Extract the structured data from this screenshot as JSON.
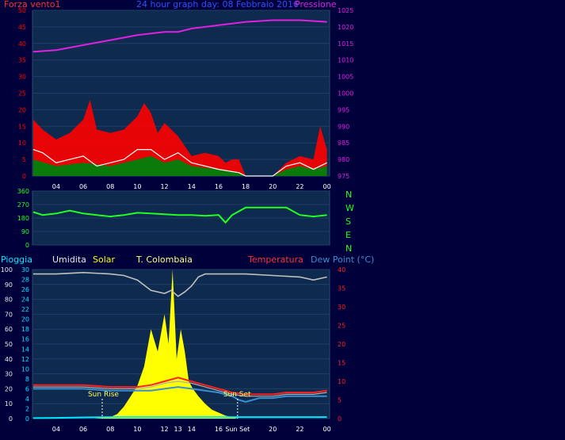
{
  "header": {
    "wind_label": "Forza vento1",
    "title": "24 hour graph day:  08 Febbraio 2016",
    "pressure_label": "Pressione"
  },
  "compass": [
    "N",
    "W",
    "S",
    "E",
    "N"
  ],
  "legend": {
    "rain": "Pioggia",
    "humidity": "Umidita",
    "solar": "Solar",
    "colombaia": "T. Colombaia",
    "temperature": "Temperatura",
    "dewpoint": "Dew Point (°C)"
  },
  "annotations": {
    "sunrise": "Sun Rise",
    "sunset": "Sun Set"
  },
  "colors": {
    "background": "#00003a",
    "panel": "#0e2a4e",
    "wind_gust": "#ff0000",
    "wind_avg": "#0a7a0a",
    "wind_line": "#ffffff",
    "pressure": "#e020e0",
    "direction": "#22ff22",
    "solar": "#ffff00",
    "humidity": "#c0c0c0",
    "temperature": "#ff2020",
    "dewpoint": "#3a8fd0",
    "rain": "#00e8ff"
  },
  "chart_data": [
    {
      "type": "line",
      "name": "wind-and-pressure",
      "x_ticks": [
        "04",
        "06",
        "08",
        "10",
        "12",
        "14",
        "16",
        "18",
        "20",
        "22",
        "00"
      ],
      "x_tick_hours": [
        4,
        6,
        8,
        10,
        12,
        14,
        16,
        18,
        20,
        22,
        24
      ],
      "xlim": [
        2.25,
        24.2
      ],
      "left_axis": {
        "ylim": [
          0,
          50
        ],
        "ticks": [
          0,
          5,
          10,
          15,
          20,
          25,
          30,
          35,
          40,
          45,
          50
        ]
      },
      "right_axis": {
        "ylim": [
          975,
          1025
        ],
        "ticks": [
          975,
          980,
          985,
          990,
          995,
          1000,
          1005,
          1010,
          1015,
          1020,
          1025
        ]
      },
      "pressure": {
        "x": [
          2.3,
          4,
          6,
          8,
          10,
          12,
          13,
          14,
          16,
          18,
          20,
          22,
          24
        ],
        "y": [
          1012.5,
          1013,
          1014.5,
          1016,
          1017.5,
          1018.5,
          1018.5,
          1019.5,
          1020.5,
          1021.5,
          1022,
          1022,
          1021.5
        ]
      },
      "gust": {
        "x": [
          2.3,
          3,
          4,
          5,
          6,
          6.5,
          7,
          8,
          9,
          10,
          10.5,
          11,
          11.5,
          12,
          13,
          14,
          15,
          16,
          16.5,
          17,
          17.5,
          18,
          19,
          20,
          20.5,
          21,
          22,
          23,
          23.5,
          24
        ],
        "y": [
          17,
          14,
          11,
          13,
          17,
          23,
          14,
          13,
          14,
          18,
          22,
          19,
          13,
          16,
          12,
          6,
          7,
          6,
          4,
          5,
          5,
          0,
          0,
          0,
          2,
          4,
          6,
          5,
          15,
          8
        ]
      },
      "average": {
        "x": [
          2.3,
          4,
          6,
          8,
          10,
          11,
          12,
          13,
          14,
          16,
          17.5,
          18,
          20,
          21,
          22,
          23,
          24
        ],
        "y": [
          5,
          3,
          4,
          3,
          5,
          6,
          4,
          5,
          3,
          2,
          1,
          0,
          0,
          2,
          3,
          2,
          3
        ]
      },
      "wind": {
        "x": [
          2.3,
          3,
          4,
          5,
          6,
          7,
          8,
          9,
          10,
          11,
          12,
          13,
          14,
          16,
          17.5,
          18,
          20,
          21,
          22,
          23,
          24
        ],
        "y": [
          8,
          7,
          4,
          5,
          6,
          3,
          4,
          5,
          8,
          8,
          5,
          7,
          4,
          2,
          1,
          0,
          0,
          3,
          4,
          2,
          4
        ]
      }
    },
    {
      "type": "line",
      "name": "wind-direction",
      "xlim": [
        2.25,
        24.2
      ],
      "ylim": [
        0,
        360
      ],
      "ticks": [
        0,
        90,
        180,
        270,
        360
      ],
      "direction": {
        "x": [
          2.3,
          3,
          4,
          5,
          6,
          7,
          8,
          9,
          10,
          11,
          12,
          13,
          14,
          15,
          16,
          16.5,
          17,
          18,
          19,
          20,
          21,
          22,
          23,
          24
        ],
        "y": [
          220,
          200,
          210,
          230,
          210,
          200,
          190,
          200,
          215,
          210,
          205,
          200,
          200,
          195,
          200,
          150,
          200,
          250,
          250,
          250,
          250,
          200,
          190,
          200
        ]
      }
    },
    {
      "type": "line",
      "name": "weather-summary",
      "x_ticks": [
        "04",
        "06",
        "08",
        "10",
        "12",
        "13",
        "14",
        "16",
        "Sun Set",
        "20",
        "22",
        "00"
      ],
      "x_tick_hours": [
        4,
        6,
        8,
        10,
        12,
        13,
        14,
        16,
        17.4,
        20,
        22,
        24
      ],
      "xlim": [
        2.25,
        24.2
      ],
      "left_axis_outer": {
        "label": "Pioggia",
        "ylim": [
          0,
          100
        ],
        "ticks": [
          0,
          10,
          20,
          30,
          40,
          50,
          60,
          70,
          80,
          90,
          100
        ]
      },
      "left_axis_inner": {
        "label": "Umidita",
        "ylim": [
          0,
          30
        ],
        "ticks": [
          0,
          2,
          4,
          6,
          8,
          10,
          12,
          14,
          16,
          18,
          20,
          22,
          24,
          26,
          28,
          30
        ]
      },
      "right_axis": {
        "label": "Temperatura",
        "ylim": [
          0,
          40
        ],
        "ticks": [
          0,
          5,
          10,
          15,
          20,
          25,
          30,
          35,
          40
        ]
      },
      "humidity": {
        "x": [
          2.3,
          4,
          6,
          8,
          9,
          10,
          11,
          12,
          12.5,
          13,
          13.5,
          14,
          14.5,
          15,
          16,
          18,
          20,
          22,
          23,
          24
        ],
        "y": [
          97,
          97,
          98,
          97,
          96,
          93,
          86,
          84,
          86,
          82,
          85,
          89,
          95,
          97,
          97,
          97,
          96,
          95,
          93,
          95
        ]
      },
      "temperature": {
        "x": [
          2.3,
          4,
          6,
          8,
          9,
          10,
          11,
          12,
          13,
          14,
          15,
          16,
          17,
          18,
          19,
          20,
          21,
          22,
          23,
          24
        ],
        "y": [
          9,
          9,
          9,
          8.5,
          8.5,
          8.5,
          9,
          10,
          11,
          10,
          9,
          8,
          7,
          6.5,
          6.5,
          6.5,
          7,
          7,
          7,
          7.5
        ]
      },
      "colombaia": {
        "x": [
          2.3,
          4,
          6,
          8,
          9,
          10,
          11,
          12,
          13,
          14,
          15,
          16,
          17,
          18,
          19,
          20,
          21,
          22,
          23,
          24
        ],
        "y": [
          8.5,
          8.5,
          8.5,
          8,
          8,
          8,
          8.5,
          9.5,
          10,
          9.5,
          8.5,
          7.5,
          6.5,
          6,
          6,
          6,
          6.5,
          6.5,
          6.5,
          7
        ]
      },
      "dewpoint": {
        "x": [
          2.3,
          4,
          6,
          8,
          9,
          10,
          11,
          12,
          13,
          14,
          15,
          16,
          17,
          17.5,
          18,
          19,
          20,
          21,
          22,
          23,
          24
        ],
        "y": [
          8,
          8,
          8,
          7.5,
          7.5,
          7.5,
          7.5,
          8,
          8.5,
          8,
          7.5,
          7,
          6,
          5,
          4.5,
          5.5,
          5.5,
          6,
          6,
          6,
          6
        ]
      },
      "solar": {
        "x": [
          6.8,
          7.5,
          8,
          8.5,
          9,
          9.5,
          10,
          10.5,
          11,
          11.5,
          12,
          12.3,
          12.6,
          12.9,
          13.2,
          13.5,
          13.8,
          14.1,
          14.5,
          15,
          15.5,
          16,
          16.5,
          17,
          17.4
        ],
        "y": [
          0,
          0.5,
          1,
          3,
          8,
          15,
          22,
          35,
          60,
          45,
          70,
          50,
          100,
          40,
          60,
          45,
          25,
          20,
          15,
          10,
          6,
          4,
          2,
          1,
          0
        ]
      },
      "rain": {
        "x": [
          2.3,
          4,
          6,
          8,
          10,
          12,
          14,
          16,
          18,
          20,
          22,
          24
        ],
        "y": [
          0.3,
          0.5,
          0.8,
          1,
          1,
          1,
          1,
          1,
          1,
          1,
          1,
          1
        ]
      },
      "sunrise_hour": 7.4,
      "sunset_hour": 17.4
    }
  ]
}
